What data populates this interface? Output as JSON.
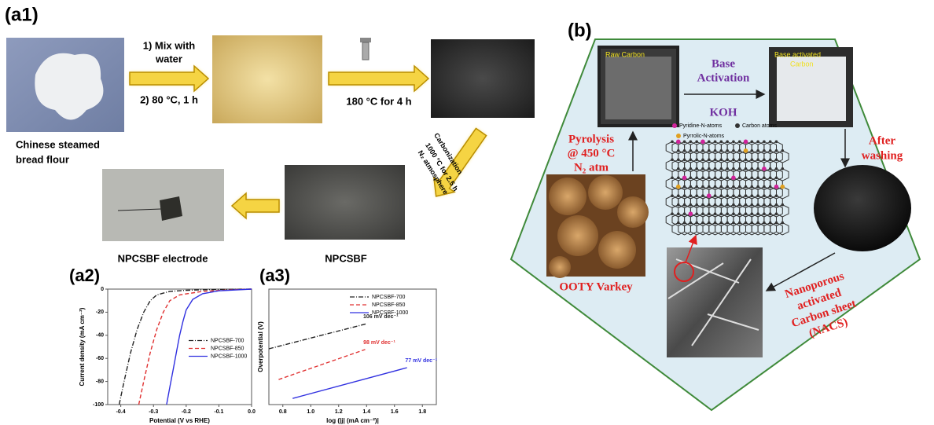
{
  "panel_a1": {
    "label": "(a1)",
    "step1_line1": "1) Mix with",
    "step1_line2": "water",
    "step2": "2) 80 °C, 1 h",
    "step3": "180 °C for 4 h",
    "flour_line1": "Chinese steamed",
    "flour_line2": "bread flour",
    "carb_line1": "Carbonization",
    "carb_line2": "1000 °C for 2.5 h",
    "carb_line3": "N₂ atmosphere",
    "npcsbf": "NPCSBF",
    "electrode": "NPCSBF electrode"
  },
  "panel_b": {
    "label": "(b)",
    "raw_carbon": "Raw Carbon",
    "base_activated_line1": "Base activated",
    "base_activated_line2": "Carbon",
    "activation_line1": "Base",
    "activation_line2": "Activation",
    "koh": "KOH",
    "pyrolysis_line1": "Pyrolysis",
    "pyrolysis_line2": "@ 450 °C",
    "pyrolysis_line3": "N₂ atm",
    "pyridine": "Pyridine-N-atoms",
    "pyrrolic": "Pyrrolic-N-atoms",
    "carbon": "Carbon  atoms",
    "washing_line1": "After",
    "washing_line2": "washing",
    "varkey": "OOTY Varkey",
    "nacs_line1": "Nanoporous",
    "nacs_line2": "activated",
    "nacs_line3": "Carbon sheet",
    "nacs_line4": "(NACS)"
  },
  "chart_data": [
    {
      "type": "line",
      "label": "(a2)",
      "x_label": "Potential (V vs RHE)",
      "y_label": "Current density (mA cm⁻²)",
      "xlim": [
        -0.44,
        0
      ],
      "xticks": [
        -0.4,
        -0.3,
        -0.2,
        -0.1,
        {
          "value": 0,
          "label": "0.0"
        }
      ],
      "ylim": [
        -100,
        0
      ],
      "yticks": [
        -100,
        -80,
        -60,
        -40,
        -20,
        0
      ],
      "legend": "center right",
      "series": [
        {
          "name": "NPCSBF-700",
          "color": "#222222",
          "dash": "dash-dot",
          "x": [
            -0.405,
            -0.39,
            -0.37,
            -0.35,
            -0.33,
            -0.31,
            -0.29,
            -0.25,
            -0.2,
            -0.1,
            0
          ],
          "values": [
            -100,
            -80,
            -55,
            -35,
            -20,
            -10,
            -5,
            -2,
            -1,
            -0.3,
            0
          ]
        },
        {
          "name": "NPCSBF-850",
          "color": "#e03030",
          "dash": "dashed",
          "x": [
            -0.345,
            -0.33,
            -0.31,
            -0.29,
            -0.27,
            -0.25,
            -0.22,
            -0.15,
            -0.05,
            0
          ],
          "values": [
            -100,
            -80,
            -55,
            -35,
            -20,
            -10,
            -5,
            -2,
            -0.5,
            0
          ]
        },
        {
          "name": "NPCSBF-1000",
          "color": "#3030e0",
          "dash": "solid",
          "x": [
            -0.26,
            -0.25,
            -0.24,
            -0.23,
            -0.22,
            -0.21,
            -0.2,
            -0.18,
            -0.15,
            -0.1,
            0
          ],
          "values": [
            -100,
            -85,
            -70,
            -55,
            -40,
            -28,
            -18,
            -9,
            -4,
            -1.5,
            0
          ]
        }
      ]
    },
    {
      "type": "line",
      "label": "(a3)",
      "x_label": "log (|j| (mA cm⁻²)|",
      "y_label": "Overpotential (V)",
      "xlim": [
        0.7,
        1.9
      ],
      "xticks": [
        0.8,
        {
          "value": 1,
          "label": "1.0"
        },
        1.2,
        1.4,
        1.6,
        1.8
      ],
      "ylim": [
        0.2,
        0.5
      ],
      "legend": "upper right",
      "series": [
        {
          "name": "NPCSBF-700",
          "color": "#222222",
          "dash": "dash-dot",
          "x": [
            0.7,
            1.4
          ],
          "values": [
            0.345,
            0.41
          ],
          "annotation": "106 mV dec⁻¹"
        },
        {
          "name": "NPCSBF-850",
          "color": "#e03030",
          "dash": "dashed",
          "x": [
            0.77,
            1.39
          ],
          "values": [
            0.265,
            0.343
          ],
          "annotation": "98 mV dec⁻¹"
        },
        {
          "name": "NPCSBF-1000",
          "color": "#3030e0",
          "dash": "solid",
          "x": [
            0.87,
            1.69
          ],
          "values": [
            0.216,
            0.296
          ],
          "annotation": "77 mV dec⁻¹"
        }
      ]
    }
  ]
}
